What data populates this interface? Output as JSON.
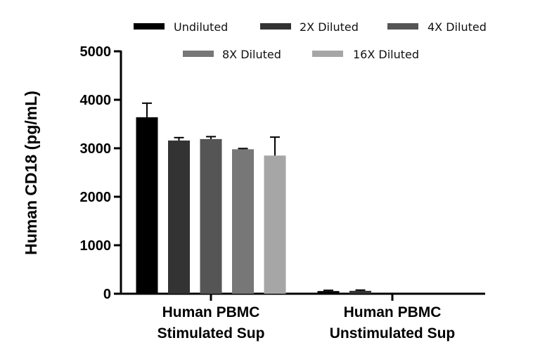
{
  "chart_data": {
    "type": "bar",
    "title": "",
    "ylabel": "Human CD18 (pg/mL)",
    "xlabel": "",
    "ylim": [
      0,
      5000
    ],
    "yticks": [
      0,
      1000,
      2000,
      3000,
      4000,
      5000
    ],
    "categories": [
      [
        "Human PBMC",
        "Stimulated Sup"
      ],
      [
        "Human PBMC",
        "Unstimulated Sup"
      ]
    ],
    "series": [
      {
        "name": "Undiluted",
        "color": "#000000",
        "values": [
          3640,
          55
        ],
        "errors": [
          290,
          15
        ]
      },
      {
        "name": "2X Diluted",
        "color": "#333333",
        "values": [
          3160,
          60
        ],
        "errors": [
          60,
          15
        ]
      },
      {
        "name": "4X Diluted",
        "color": "#555555",
        "values": [
          3190,
          0
        ],
        "errors": [
          50,
          0
        ]
      },
      {
        "name": "8X Diluted",
        "color": "#777777",
        "values": [
          2980,
          0
        ],
        "errors": [
          15,
          0
        ]
      },
      {
        "name": "16X Diluted",
        "color": "#a6a6a6",
        "values": [
          2850,
          0
        ],
        "errors": [
          380,
          0
        ]
      }
    ],
    "legend_position": "top",
    "grid": false
  }
}
